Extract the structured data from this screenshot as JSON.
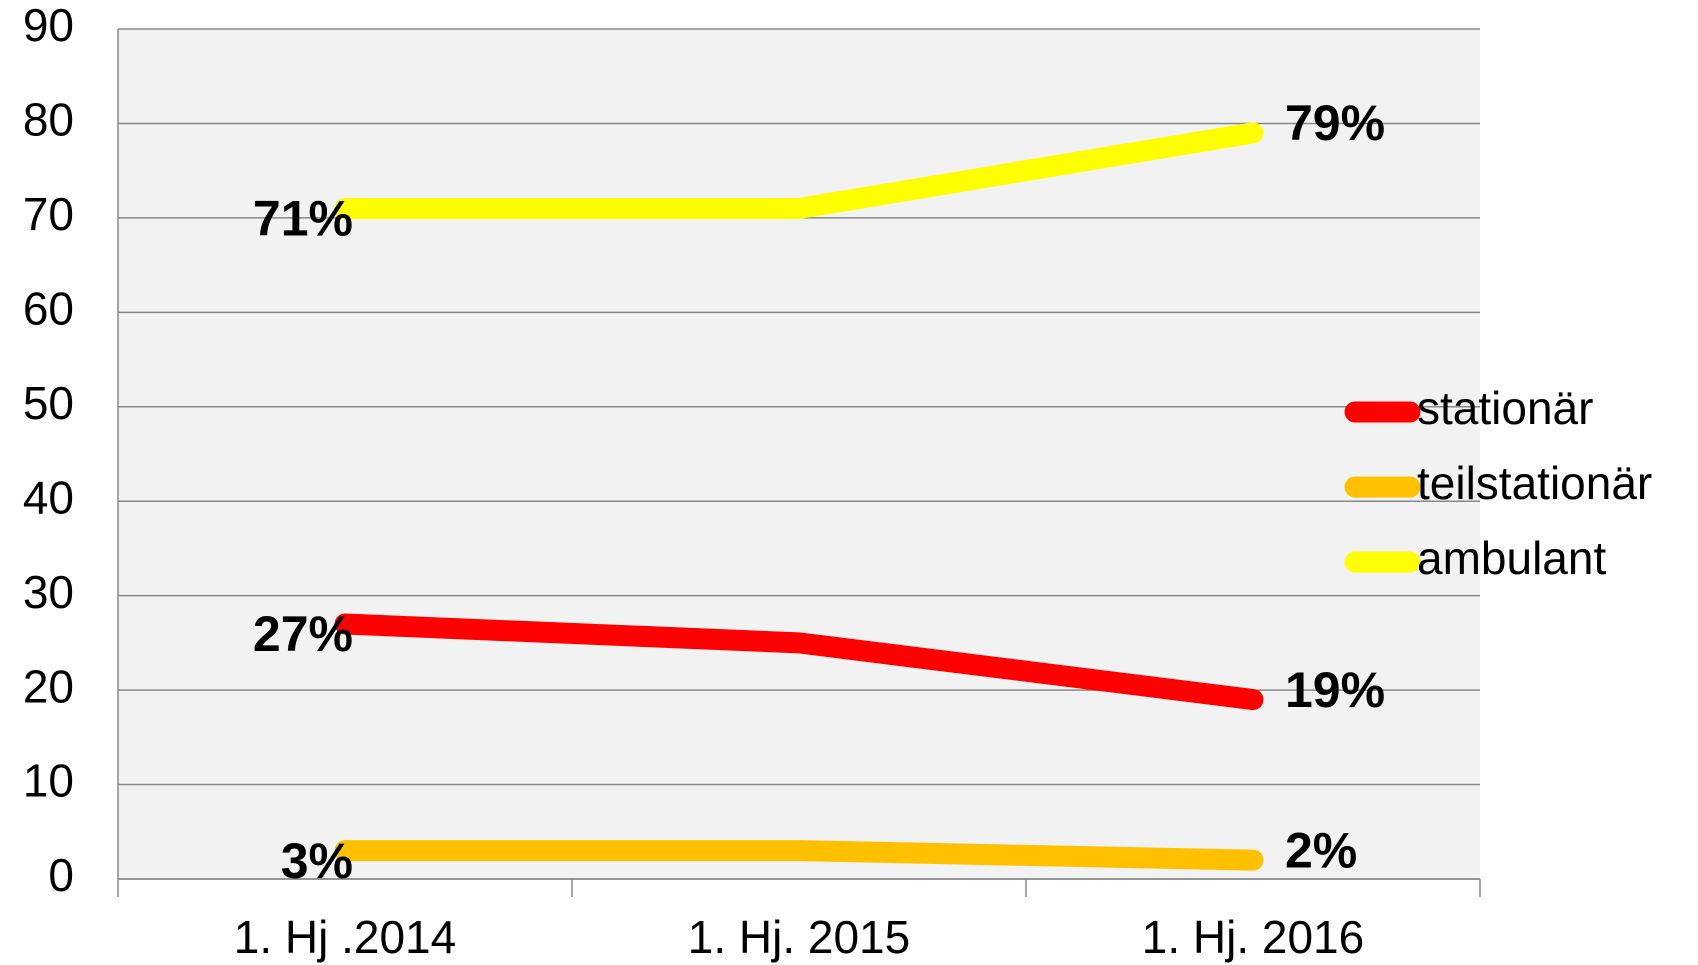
{
  "chart_data": {
    "type": "line",
    "categories": [
      "1. Hj .2014",
      "1. Hj. 2015",
      "1. Hj. 2016"
    ],
    "series": [
      {
        "name": "stationär",
        "color": "#ff0000",
        "values": [
          27,
          25,
          19
        ],
        "value_labels": [
          "27%",
          null,
          "19%"
        ]
      },
      {
        "name": "teilstationär",
        "color": "#ffc000",
        "values": [
          3,
          3,
          2
        ],
        "value_labels": [
          "3%",
          null,
          "2%"
        ]
      },
      {
        "name": "ambulant",
        "color": "#ffff00",
        "values": [
          71,
          71,
          79
        ],
        "value_labels": [
          "71%",
          null,
          "79%"
        ]
      }
    ],
    "ylim": [
      0,
      90
    ],
    "yticks": [
      0,
      10,
      20,
      30,
      40,
      50,
      60,
      70,
      80,
      90
    ],
    "grid": true,
    "legend": "right"
  }
}
